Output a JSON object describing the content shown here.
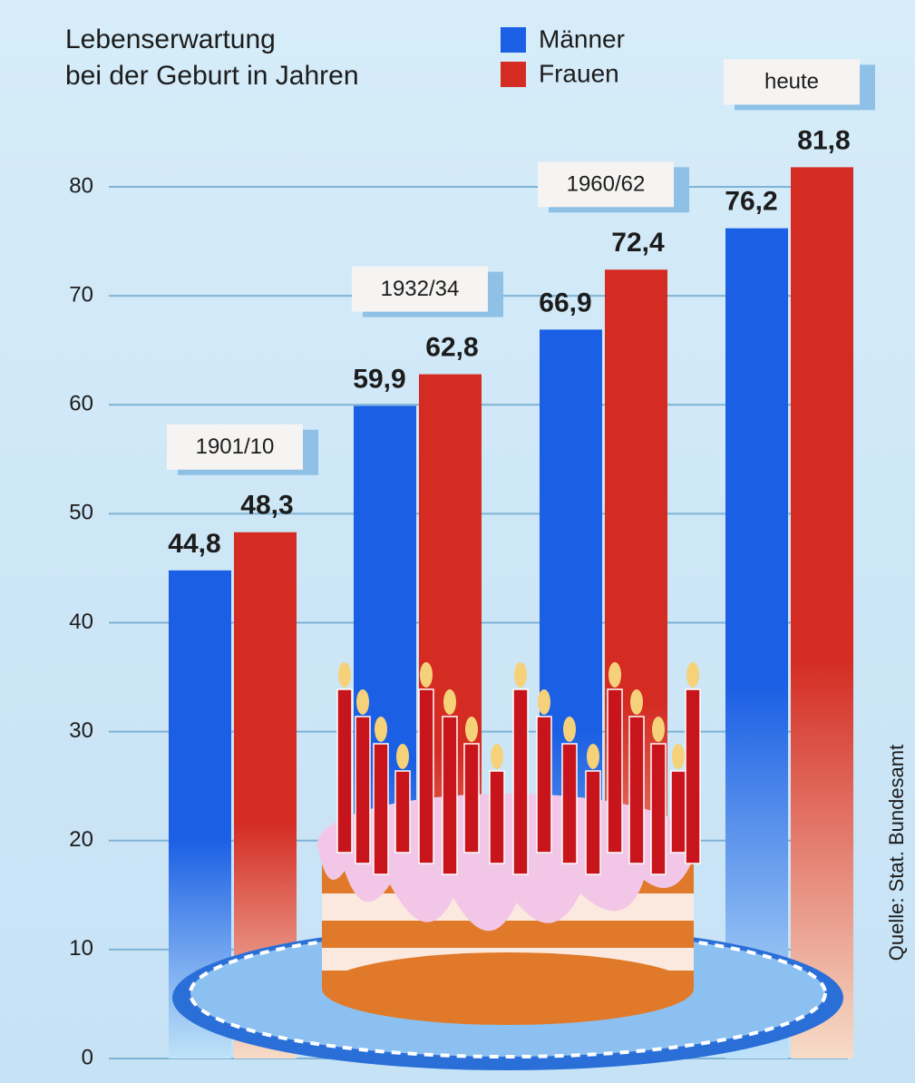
{
  "chart_data": {
    "type": "bar",
    "title": [
      "Lebenserwartung",
      "bei der Geburt in Jahren"
    ],
    "categories": [
      "1901/10",
      "1932/34",
      "1960/62",
      "heute"
    ],
    "series": [
      {
        "name": "Männer",
        "color": "#1b5fe4",
        "values": [
          44.8,
          59.9,
          66.9,
          76.2
        ],
        "value_labels": [
          "44,8",
          "59,9",
          "66,9",
          "76,2"
        ]
      },
      {
        "name": "Frauen",
        "color": "#d42b22",
        "values": [
          48.3,
          62.8,
          72.4,
          81.8
        ],
        "value_labels": [
          "48,3",
          "62,8",
          "72,4",
          "81,8"
        ]
      }
    ],
    "ylim": [
      0,
      80
    ],
    "yticks": [
      0,
      10,
      20,
      30,
      40,
      50,
      60,
      70,
      80
    ],
    "grid": true,
    "source": "Quelle: Stat. Bundesamt"
  }
}
